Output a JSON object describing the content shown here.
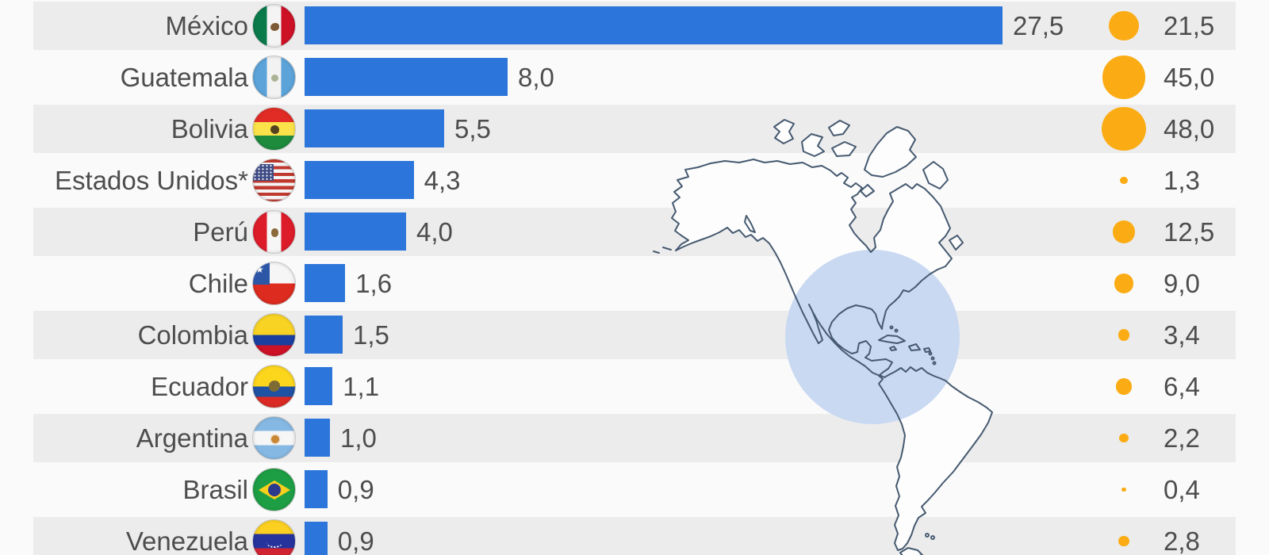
{
  "chart_data": {
    "type": "bar",
    "orientation": "horizontal",
    "decimal_separator": ",",
    "bar_color": "#2c75da",
    "bubble_color": "#fbac15",
    "stripe_color": "#ececec",
    "background_color": "#fafafa",
    "text_color": "#4d4d4d",
    "categories": [
      "México",
      "Guatemala",
      "Bolivia",
      "Estados Unidos*",
      "Perú",
      "Chile",
      "Colombia",
      "Ecuador",
      "Argentina",
      "Brasil",
      "Venezuela"
    ],
    "series": [
      {
        "name": "bar",
        "values": [
          27.5,
          8.0,
          5.5,
          4.3,
          4.0,
          1.6,
          1.5,
          1.1,
          1.0,
          0.9,
          0.9
        ]
      },
      {
        "name": "bubble",
        "values": [
          21.5,
          45.0,
          48.0,
          1.3,
          12.5,
          9.0,
          3.4,
          6.4,
          2.2,
          0.4,
          2.8
        ]
      }
    ],
    "rows": [
      {
        "country": "México",
        "flag": "mx",
        "bar_value": 27.5,
        "bar_label": "27,5",
        "bubble_value": 21.5,
        "bubble_label": "21,5"
      },
      {
        "country": "Guatemala",
        "flag": "gt",
        "bar_value": 8.0,
        "bar_label": "8,0",
        "bubble_value": 45.0,
        "bubble_label": "45,0"
      },
      {
        "country": "Bolivia",
        "flag": "bo",
        "bar_value": 5.5,
        "bar_label": "5,5",
        "bubble_value": 48.0,
        "bubble_label": "48,0"
      },
      {
        "country": "Estados Unidos*",
        "flag": "us",
        "bar_value": 4.3,
        "bar_label": "4,3",
        "bubble_value": 1.3,
        "bubble_label": "1,3"
      },
      {
        "country": "Perú",
        "flag": "pe",
        "bar_value": 4.0,
        "bar_label": "4,0",
        "bubble_value": 12.5,
        "bubble_label": "12,5"
      },
      {
        "country": "Chile",
        "flag": "cl",
        "bar_value": 1.6,
        "bar_label": "1,6",
        "bubble_value": 9.0,
        "bubble_label": "9,0"
      },
      {
        "country": "Colombia",
        "flag": "co",
        "bar_value": 1.5,
        "bar_label": "1,5",
        "bubble_value": 3.4,
        "bubble_label": "3,4"
      },
      {
        "country": "Ecuador",
        "flag": "ec",
        "bar_value": 1.1,
        "bar_label": "1,1",
        "bubble_value": 6.4,
        "bubble_label": "6,4"
      },
      {
        "country": "Argentina",
        "flag": "ar",
        "bar_value": 1.0,
        "bar_label": "1,0",
        "bubble_value": 2.2,
        "bubble_label": "2,2"
      },
      {
        "country": "Brasil",
        "flag": "br",
        "bar_value": 0.9,
        "bar_label": "0,9",
        "bubble_value": 0.4,
        "bubble_label": "0,4"
      },
      {
        "country": "Venezuela",
        "flag": "ve",
        "bar_value": 0.9,
        "bar_label": "0,9",
        "bubble_value": 2.8,
        "bubble_label": "2,8"
      }
    ],
    "map": {
      "icon": "americas-outline-map",
      "outline_color": "#465a70",
      "highlight_circle_color": "#c9d9f2",
      "highlight_region": "central-america-caribbean"
    },
    "legend_position": "none",
    "grid": false
  }
}
